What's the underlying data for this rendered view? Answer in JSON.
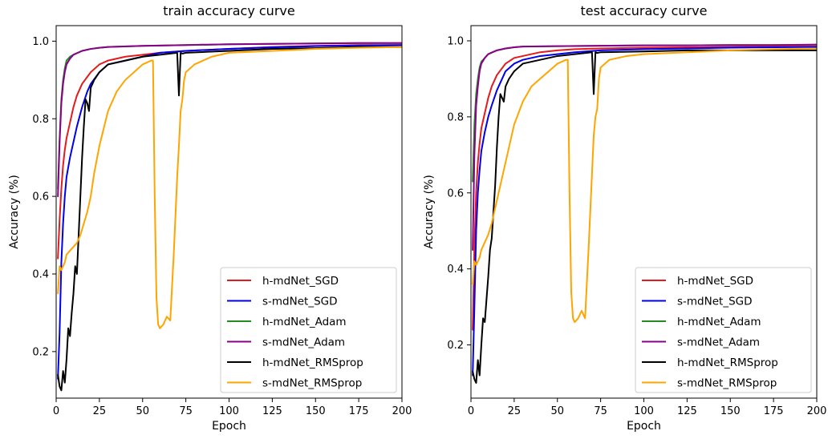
{
  "chart_data": [
    {
      "type": "line",
      "title": "train accuracy curve",
      "xlabel": "Epoch",
      "ylabel": "Accuracy (%)",
      "xlim": [
        0,
        200
      ],
      "ylim": [
        0.08,
        1.04
      ],
      "xticks": [
        0,
        25,
        50,
        75,
        100,
        125,
        150,
        175,
        200
      ],
      "yticks": [
        0.2,
        0.4,
        0.6,
        0.8,
        1.0
      ],
      "ytick_labels": [
        "0.2",
        "0.4",
        "0.6",
        "0.8",
        "1.0"
      ],
      "grid": false,
      "legend_position": "bottom-right",
      "series": [
        {
          "name": "h-mdNet_SGD",
          "color": "#e41a1c",
          "x": [
            1,
            2,
            3,
            4,
            5,
            6,
            8,
            10,
            12,
            15,
            20,
            25,
            30,
            40,
            50,
            60,
            75,
            100,
            125,
            150,
            175,
            200
          ],
          "y": [
            0.44,
            0.54,
            0.62,
            0.68,
            0.72,
            0.75,
            0.79,
            0.83,
            0.86,
            0.89,
            0.92,
            0.94,
            0.95,
            0.96,
            0.965,
            0.97,
            0.975,
            0.98,
            0.985,
            0.988,
            0.99,
            0.99
          ]
        },
        {
          "name": "s-mdNet_SGD",
          "color": "#0000ee",
          "x": [
            1,
            2,
            3,
            4,
            5,
            6,
            8,
            10,
            12,
            15,
            18,
            20,
            25,
            30,
            40,
            50,
            60,
            75,
            100,
            125,
            150,
            175,
            200
          ],
          "y": [
            0.13,
            0.25,
            0.43,
            0.53,
            0.6,
            0.65,
            0.7,
            0.74,
            0.78,
            0.83,
            0.87,
            0.89,
            0.92,
            0.94,
            0.95,
            0.96,
            0.97,
            0.975,
            0.98,
            0.984,
            0.987,
            0.989,
            0.99
          ]
        },
        {
          "name": "h-mdNet_Adam",
          "color": "#228b22",
          "x": [
            1,
            2,
            3,
            4,
            5,
            6,
            8,
            10,
            15,
            20,
            25,
            30,
            50,
            75,
            100,
            125,
            150,
            175,
            200
          ],
          "y": [
            0.62,
            0.75,
            0.85,
            0.9,
            0.93,
            0.95,
            0.96,
            0.965,
            0.975,
            0.98,
            0.983,
            0.985,
            0.988,
            0.99,
            0.992,
            0.993,
            0.994,
            0.995,
            0.995
          ]
        },
        {
          "name": "s-mdNet_Adam",
          "color": "#8b008b",
          "x": [
            1,
            2,
            3,
            4,
            5,
            6,
            8,
            10,
            15,
            20,
            25,
            30,
            50,
            75,
            100,
            125,
            150,
            175,
            200
          ],
          "y": [
            0.6,
            0.74,
            0.84,
            0.89,
            0.92,
            0.94,
            0.955,
            0.965,
            0.975,
            0.98,
            0.983,
            0.985,
            0.988,
            0.99,
            0.992,
            0.993,
            0.994,
            0.995,
            0.995
          ]
        },
        {
          "name": "h-mdNet_RMSprop",
          "color": "#000000",
          "x": [
            1,
            2,
            3,
            4,
            5,
            6,
            7,
            8,
            9,
            10,
            11,
            12,
            13,
            14,
            15,
            16,
            17,
            18,
            19,
            20,
            22,
            25,
            30,
            40,
            50,
            60,
            70,
            71,
            72,
            73,
            75,
            100,
            125,
            150,
            175,
            200
          ],
          "y": [
            0.14,
            0.11,
            0.1,
            0.15,
            0.12,
            0.18,
            0.26,
            0.24,
            0.3,
            0.35,
            0.42,
            0.4,
            0.5,
            0.6,
            0.7,
            0.78,
            0.85,
            0.84,
            0.82,
            0.88,
            0.9,
            0.92,
            0.94,
            0.95,
            0.96,
            0.965,
            0.97,
            0.86,
            0.97,
            0.968,
            0.97,
            0.975,
            0.98,
            0.982,
            0.985,
            0.985
          ]
        },
        {
          "name": "s-mdNet_RMSprop",
          "color": "#ffa500",
          "x": [
            1,
            2,
            3,
            4,
            5,
            6,
            8,
            10,
            12,
            14,
            16,
            18,
            20,
            22,
            25,
            30,
            35,
            40,
            45,
            50,
            55,
            56,
            57,
            58,
            59,
            60,
            62,
            64,
            66,
            68,
            70,
            71,
            72,
            73,
            74,
            75,
            80,
            90,
            100,
            125,
            150,
            175,
            200
          ],
          "y": [
            0.35,
            0.42,
            0.41,
            0.42,
            0.43,
            0.45,
            0.46,
            0.47,
            0.48,
            0.5,
            0.53,
            0.56,
            0.6,
            0.66,
            0.73,
            0.82,
            0.87,
            0.9,
            0.92,
            0.94,
            0.95,
            0.95,
            0.6,
            0.34,
            0.27,
            0.26,
            0.27,
            0.29,
            0.28,
            0.45,
            0.65,
            0.73,
            0.82,
            0.85,
            0.9,
            0.92,
            0.94,
            0.96,
            0.97,
            0.975,
            0.98,
            0.983,
            0.985
          ]
        }
      ]
    },
    {
      "type": "line",
      "title": "test accuracy curve",
      "xlabel": "Epoch",
      "ylabel": "Accuracy (%)",
      "xlim": [
        0,
        200
      ],
      "ylim": [
        0.06,
        1.04
      ],
      "xticks": [
        0,
        25,
        50,
        75,
        100,
        125,
        150,
        175,
        200
      ],
      "yticks": [
        0.2,
        0.4,
        0.6,
        0.8,
        1.0
      ],
      "ytick_labels": [
        "0.2",
        "0.4",
        "0.6",
        "0.8",
        "1.0"
      ],
      "grid": false,
      "legend_position": "bottom-right",
      "series": [
        {
          "name": "h-mdNet_SGD",
          "color": "#e41a1c",
          "x": [
            1,
            2,
            3,
            4,
            5,
            6,
            8,
            10,
            12,
            15,
            20,
            25,
            30,
            40,
            50,
            60,
            75,
            100,
            125,
            150,
            175,
            200
          ],
          "y": [
            0.24,
            0.46,
            0.6,
            0.68,
            0.73,
            0.77,
            0.81,
            0.85,
            0.88,
            0.91,
            0.94,
            0.955,
            0.96,
            0.97,
            0.975,
            0.978,
            0.98,
            0.982,
            0.983,
            0.984,
            0.985,
            0.985
          ]
        },
        {
          "name": "s-mdNet_SGD",
          "color": "#0000ee",
          "x": [
            1,
            2,
            3,
            4,
            5,
            6,
            8,
            10,
            12,
            15,
            18,
            20,
            25,
            30,
            40,
            50,
            60,
            75,
            100,
            125,
            150,
            175,
            200
          ],
          "y": [
            0.12,
            0.3,
            0.5,
            0.6,
            0.66,
            0.71,
            0.76,
            0.8,
            0.83,
            0.87,
            0.9,
            0.92,
            0.94,
            0.95,
            0.96,
            0.965,
            0.97,
            0.975,
            0.978,
            0.98,
            0.982,
            0.983,
            0.984
          ]
        },
        {
          "name": "h-mdNet_Adam",
          "color": "#228b22",
          "x": [
            1,
            2,
            3,
            4,
            5,
            6,
            8,
            10,
            15,
            20,
            25,
            30,
            50,
            75,
            100,
            125,
            150,
            175,
            200
          ],
          "y": [
            0.63,
            0.78,
            0.86,
            0.9,
            0.93,
            0.945,
            0.955,
            0.965,
            0.975,
            0.98,
            0.983,
            0.985,
            0.986,
            0.987,
            0.988,
            0.988,
            0.989,
            0.989,
            0.99
          ]
        },
        {
          "name": "s-mdNet_Adam",
          "color": "#8b008b",
          "x": [
            1,
            2,
            3,
            4,
            5,
            6,
            8,
            10,
            15,
            20,
            25,
            30,
            50,
            75,
            100,
            125,
            150,
            175,
            200
          ],
          "y": [
            0.45,
            0.7,
            0.83,
            0.88,
            0.92,
            0.94,
            0.955,
            0.965,
            0.975,
            0.98,
            0.983,
            0.985,
            0.986,
            0.987,
            0.988,
            0.988,
            0.989,
            0.989,
            0.99
          ]
        },
        {
          "name": "h-mdNet_RMSprop",
          "color": "#000000",
          "x": [
            1,
            2,
            3,
            4,
            5,
            6,
            7,
            8,
            9,
            10,
            11,
            12,
            13,
            14,
            15,
            16,
            17,
            18,
            19,
            20,
            22,
            25,
            30,
            40,
            50,
            60,
            70,
            71,
            72,
            73,
            75,
            100,
            125,
            150,
            175,
            200
          ],
          "y": [
            0.13,
            0.11,
            0.1,
            0.16,
            0.12,
            0.2,
            0.27,
            0.26,
            0.32,
            0.38,
            0.45,
            0.48,
            0.55,
            0.62,
            0.72,
            0.8,
            0.86,
            0.85,
            0.84,
            0.88,
            0.9,
            0.92,
            0.94,
            0.95,
            0.96,
            0.965,
            0.97,
            0.86,
            0.97,
            0.968,
            0.97,
            0.972,
            0.975,
            0.975,
            0.975,
            0.975
          ]
        },
        {
          "name": "s-mdNet_RMSprop",
          "color": "#ffa500",
          "x": [
            1,
            2,
            3,
            4,
            5,
            6,
            8,
            10,
            12,
            14,
            16,
            18,
            20,
            22,
            25,
            30,
            35,
            40,
            45,
            50,
            55,
            56,
            57,
            58,
            59,
            60,
            62,
            64,
            66,
            68,
            70,
            71,
            72,
            73,
            74,
            75,
            80,
            90,
            100,
            125,
            150,
            175,
            200
          ],
          "y": [
            0.36,
            0.42,
            0.41,
            0.42,
            0.43,
            0.45,
            0.47,
            0.49,
            0.52,
            0.56,
            0.6,
            0.64,
            0.68,
            0.72,
            0.78,
            0.84,
            0.88,
            0.9,
            0.92,
            0.94,
            0.95,
            0.95,
            0.6,
            0.34,
            0.27,
            0.26,
            0.27,
            0.29,
            0.27,
            0.45,
            0.65,
            0.75,
            0.8,
            0.82,
            0.9,
            0.93,
            0.95,
            0.96,
            0.965,
            0.97,
            0.975,
            0.978,
            0.98
          ]
        }
      ]
    }
  ]
}
